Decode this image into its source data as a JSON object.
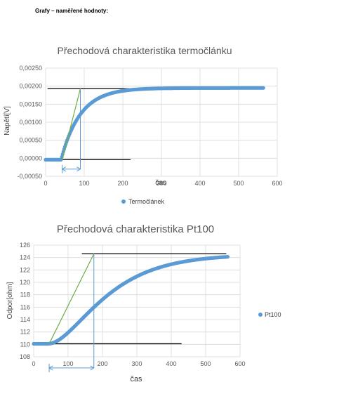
{
  "heading": "Grafy – naměřené hodnoty:",
  "series_color": "#5b9bd5",
  "tangent_color": "#70ad47",
  "line_color": "#000000",
  "chart_data": [
    {
      "type": "scatter",
      "title": "Přechodová charakteristika termočlánku",
      "xlabel": "čas",
      "ylabel": "Napětí[V]",
      "xlim": [
        0,
        600
      ],
      "ylim": [
        -0.0005,
        0.0025
      ],
      "x_ticks": [
        "0",
        "100",
        "200",
        "300",
        "400",
        "500",
        "600"
      ],
      "y_ticks": [
        "-0,00050",
        "0,00000",
        "0,00050",
        "0,00100",
        "0,00150",
        "0,00200",
        "0,00250"
      ],
      "legend": "bottom",
      "series": [
        {
          "name": "Termočlánek",
          "model": "step",
          "x_start": 0,
          "x_end": 565,
          "t0": 40,
          "tau": 50,
          "y0": -4e-05,
          "y1": 0.00195
        }
      ],
      "annotations": {
        "baseline": {
          "x": [
            0,
            220
          ],
          "y": -4e-05
        },
        "steady": {
          "x": [
            5,
            540
          ],
          "y": 0.00193
        },
        "tangent": {
          "x": [
            43,
            90
          ],
          "y": [
            -4e-05,
            0.00193
          ]
        },
        "vertical": {
          "x": 90,
          "y": [
            -0.0003,
            0.00193
          ]
        },
        "arrow": {
          "x": [
            43,
            90
          ],
          "y": -0.0003
        }
      }
    },
    {
      "type": "scatter",
      "title": "Přechodová charakteristika Pt100",
      "xlabel": "čas",
      "ylabel": "Odpor[ohm]",
      "xlim": [
        0,
        600
      ],
      "ylim": [
        108,
        126
      ],
      "x_ticks": [
        "0",
        "100",
        "200",
        "300",
        "400",
        "500",
        "600"
      ],
      "y_ticks": [
        "108",
        "110",
        "112",
        "114",
        "116",
        "118",
        "120",
        "122",
        "124",
        "126"
      ],
      "legend": "right",
      "series": [
        {
          "name": "Pt100",
          "model": "sshape",
          "x_start": 0,
          "x_end": 565,
          "t0": 42,
          "tau": 95,
          "y0": 110.1,
          "y1": 124.5
        }
      ],
      "annotations": {
        "baseline": {
          "x": [
            0,
            430
          ],
          "y": 110.1
        },
        "steady": {
          "x": [
            140,
            560
          ],
          "y": 124.6
        },
        "tangent": {
          "x": [
            45,
            175
          ],
          "y": [
            110.1,
            124.6
          ]
        },
        "vertical": {
          "x": 175,
          "y": [
            106.2,
            124.6
          ]
        },
        "arrow": {
          "x": [
            45,
            175
          ],
          "y": 106.2
        }
      }
    }
  ]
}
